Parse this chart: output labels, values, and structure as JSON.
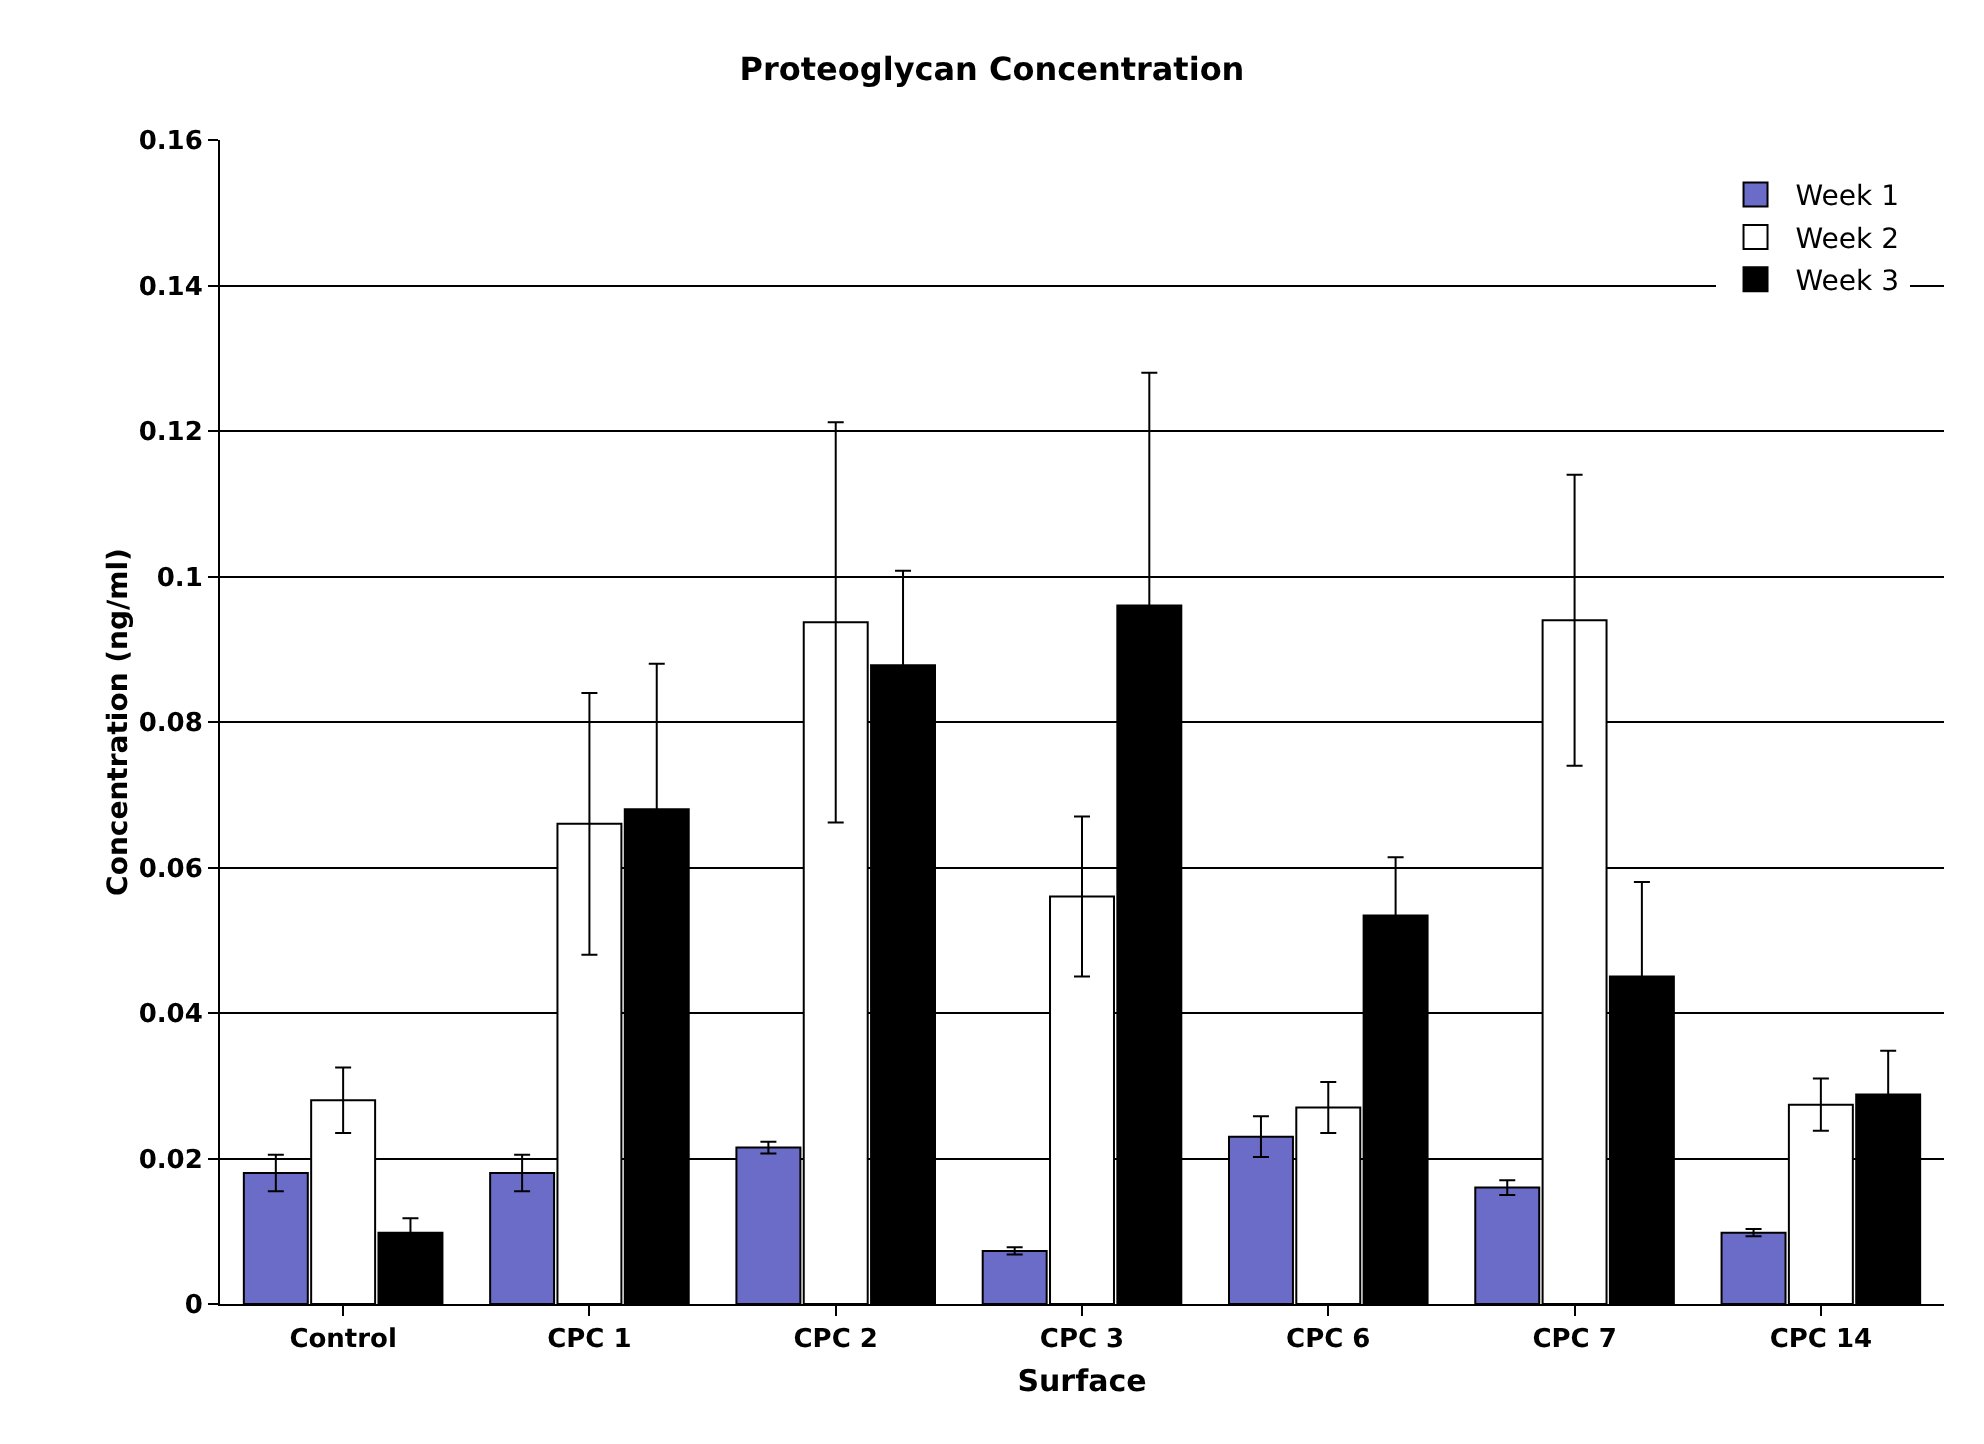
{
  "chart_data": {
    "type": "bar",
    "title": "Proteoglycan Concentration",
    "xlabel": "Surface",
    "ylabel": "Concentration (ng/ml)",
    "categories": [
      "Control",
      "CPC 1",
      "CPC 2",
      "CPC 3",
      "CPC 6",
      "CPC 7",
      "CPC 14"
    ],
    "series": [
      {
        "name": "Week 1",
        "color": "#6b6bc8",
        "values": [
          0.018,
          0.018,
          0.0215,
          0.0073,
          0.023,
          0.016,
          0.0098
        ],
        "errors": [
          0.0025,
          0.0025,
          0.0008,
          0.0005,
          0.0028,
          0.001,
          0.0005
        ]
      },
      {
        "name": "Week 2",
        "color": "#ffffff",
        "values": [
          0.028,
          0.066,
          0.0937,
          0.056,
          0.027,
          0.094,
          0.0274
        ],
        "errors": [
          0.0045,
          0.018,
          0.0275,
          0.011,
          0.0035,
          0.02,
          0.0036
        ]
      },
      {
        "name": "Week 3",
        "color": "#000000",
        "values": [
          0.0098,
          0.068,
          0.0878,
          0.096,
          0.0534,
          0.045,
          0.0288
        ],
        "errors": [
          0.002,
          0.02,
          0.013,
          0.032,
          0.008,
          0.013,
          0.006
        ]
      }
    ],
    "ylim": [
      0,
      0.16
    ],
    "yticks": [
      0,
      0.02,
      0.04,
      0.06,
      0.08,
      0.1,
      0.12,
      0.14,
      0.16
    ],
    "grid": "y",
    "legend": "top right"
  }
}
